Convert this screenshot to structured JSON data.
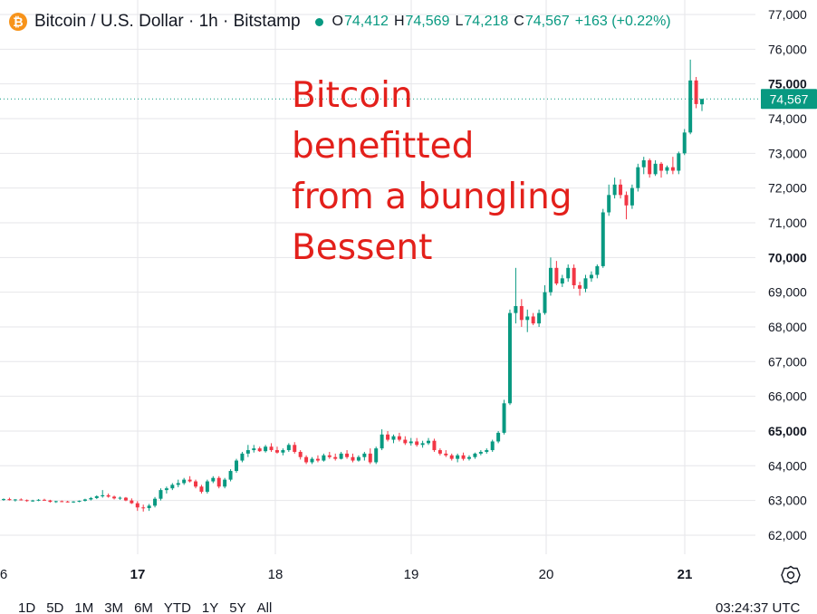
{
  "header": {
    "coin_symbol": "₿",
    "title": "Bitcoin / U.S. Dollar · 1h · Bitstamp",
    "ohlc": [
      {
        "key": "O",
        "value": "74,412"
      },
      {
        "key": "H",
        "value": "74,569"
      },
      {
        "key": "L",
        "value": "74,218"
      },
      {
        "key": "C",
        "value": "74,567"
      }
    ],
    "change": "+163 (+0.22%)"
  },
  "annotation": {
    "lines": [
      "Bitcoin benefitted",
      "from a bungling",
      "Bessent"
    ]
  },
  "bottom_bar": {
    "ranges": [
      "1D",
      "5D",
      "1M",
      "3M",
      "6M",
      "YTD",
      "1Y",
      "5Y",
      "All"
    ],
    "clock": "03:24:37 UTC"
  },
  "colors": {
    "up": "#089981",
    "down": "#f23645",
    "annotation": "#e3201b",
    "grid": "#e6e6ea"
  },
  "icons": {
    "settings": "gear-icon",
    "coin": "bitcoin-icon",
    "status": "market-open-dot-icon"
  },
  "chart_data": {
    "type": "candlestick",
    "interval": "1h",
    "exchange": "Bitstamp",
    "x_tick_labels": [
      "6",
      "17",
      "18",
      "19",
      "20",
      "21"
    ],
    "y_ticks": [
      62000,
      63000,
      64000,
      65000,
      66000,
      67000,
      68000,
      69000,
      70000,
      71000,
      72000,
      73000,
      74000,
      75000,
      76000,
      77000
    ],
    "ylim": [
      61300,
      77200
    ],
    "last_price": 74567,
    "last_price_label": "74,567",
    "grid": true,
    "candles": [
      [
        63020,
        63060,
        62990,
        63040
      ],
      [
        63040,
        63080,
        63000,
        63010
      ],
      [
        63010,
        63040,
        62970,
        63030
      ],
      [
        63030,
        63060,
        63000,
        63010
      ],
      [
        63010,
        63030,
        62960,
        62990
      ],
      [
        62990,
        63020,
        62960,
        63000
      ],
      [
        63000,
        63040,
        62980,
        63020
      ],
      [
        63020,
        63050,
        62990,
        63000
      ],
      [
        63000,
        63020,
        62940,
        62960
      ],
      [
        62960,
        62990,
        62930,
        62980
      ],
      [
        62980,
        63000,
        62950,
        62970
      ],
      [
        62970,
        62990,
        62940,
        62960
      ],
      [
        62960,
        62980,
        62930,
        62970
      ],
      [
        62970,
        63000,
        62950,
        62990
      ],
      [
        62990,
        63050,
        62970,
        63030
      ],
      [
        63030,
        63100,
        63000,
        63070
      ],
      [
        63070,
        63150,
        63040,
        63120
      ],
      [
        63120,
        63300,
        63080,
        63150
      ],
      [
        63150,
        63200,
        63080,
        63110
      ],
      [
        63110,
        63140,
        63030,
        63060
      ],
      [
        63060,
        63110,
        63020,
        63080
      ],
      [
        63080,
        63100,
        62980,
        63000
      ],
      [
        63000,
        63060,
        62900,
        62920
      ],
      [
        62920,
        62980,
        62700,
        62800
      ],
      [
        62800,
        62880,
        62680,
        62780
      ],
      [
        62780,
        62900,
        62700,
        62850
      ],
      [
        62850,
        63100,
        62800,
        63050
      ],
      [
        63050,
        63350,
        63000,
        63300
      ],
      [
        63300,
        63400,
        63200,
        63350
      ],
      [
        63350,
        63500,
        63300,
        63450
      ],
      [
        63450,
        63600,
        63380,
        63500
      ],
      [
        63500,
        63650,
        63450,
        63600
      ],
      [
        63600,
        63700,
        63520,
        63550
      ],
      [
        63550,
        63600,
        63350,
        63400
      ],
      [
        63400,
        63450,
        63200,
        63250
      ],
      [
        63250,
        63600,
        63200,
        63550
      ],
      [
        63550,
        63700,
        63500,
        63650
      ],
      [
        63650,
        63700,
        63350,
        63400
      ],
      [
        63400,
        63650,
        63350,
        63600
      ],
      [
        63600,
        63900,
        63550,
        63850
      ],
      [
        63850,
        64200,
        63800,
        64150
      ],
      [
        64150,
        64400,
        64100,
        64350
      ],
      [
        64350,
        64600,
        64250,
        64450
      ],
      [
        64450,
        64600,
        64380,
        64500
      ],
      [
        64500,
        64550,
        64400,
        64420
      ],
      [
        64420,
        64600,
        64380,
        64550
      ],
      [
        64550,
        64650,
        64400,
        64450
      ],
      [
        64450,
        64550,
        64350,
        64380
      ],
      [
        64380,
        64500,
        64300,
        64450
      ],
      [
        64450,
        64650,
        64400,
        64600
      ],
      [
        64600,
        64680,
        64350,
        64400
      ],
      [
        64400,
        64450,
        64180,
        64250
      ],
      [
        64250,
        64300,
        64050,
        64100
      ],
      [
        64100,
        64250,
        64050,
        64200
      ],
      [
        64200,
        64300,
        64100,
        64150
      ],
      [
        64150,
        64350,
        64120,
        64300
      ],
      [
        64300,
        64400,
        64200,
        64250
      ],
      [
        64250,
        64350,
        64150,
        64200
      ],
      [
        64200,
        64400,
        64180,
        64350
      ],
      [
        64350,
        64450,
        64200,
        64250
      ],
      [
        64250,
        64350,
        64100,
        64150
      ],
      [
        64150,
        64300,
        64120,
        64250
      ],
      [
        64250,
        64400,
        64150,
        64350
      ],
      [
        64350,
        64500,
        64050,
        64100
      ],
      [
        64100,
        64550,
        64050,
        64500
      ],
      [
        64500,
        65050,
        64450,
        64900
      ],
      [
        64900,
        65000,
        64700,
        64750
      ],
      [
        64750,
        64900,
        64650,
        64850
      ],
      [
        64850,
        64950,
        64700,
        64750
      ],
      [
        64750,
        64850,
        64600,
        64650
      ],
      [
        64650,
        64800,
        64580,
        64700
      ],
      [
        64700,
        64800,
        64550,
        64600
      ],
      [
        64600,
        64720,
        64520,
        64650
      ],
      [
        64650,
        64800,
        64600,
        64720
      ],
      [
        64720,
        64780,
        64400,
        64450
      ],
      [
        64450,
        64500,
        64300,
        64350
      ],
      [
        64350,
        64450,
        64250,
        64300
      ],
      [
        64300,
        64350,
        64150,
        64200
      ],
      [
        64200,
        64350,
        64100,
        64300
      ],
      [
        64300,
        64380,
        64150,
        64200
      ],
      [
        64200,
        64300,
        64150,
        64250
      ],
      [
        64250,
        64380,
        64200,
        64350
      ],
      [
        64350,
        64450,
        64300,
        64400
      ],
      [
        64400,
        64500,
        64350,
        64450
      ],
      [
        64450,
        64750,
        64400,
        64700
      ],
      [
        64700,
        65000,
        64650,
        64950
      ],
      [
        64950,
        65900,
        64900,
        65800
      ],
      [
        65800,
        68500,
        65750,
        68400
      ],
      [
        68400,
        69700,
        68100,
        68600
      ],
      [
        68600,
        68800,
        68000,
        68200
      ],
      [
        68200,
        68500,
        67850,
        68300
      ],
      [
        68300,
        68400,
        68050,
        68100
      ],
      [
        68100,
        68500,
        68000,
        68400
      ],
      [
        68400,
        69200,
        68350,
        69000
      ],
      [
        69000,
        70000,
        68900,
        69700
      ],
      [
        69700,
        69900,
        69200,
        69250
      ],
      [
        69250,
        69500,
        69150,
        69400
      ],
      [
        69400,
        69800,
        69300,
        69700
      ],
      [
        69700,
        69800,
        69100,
        69200
      ],
      [
        69200,
        69300,
        68900,
        69100
      ],
      [
        69100,
        69500,
        69000,
        69400
      ],
      [
        69400,
        69600,
        69300,
        69500
      ],
      [
        69500,
        69800,
        69400,
        69750
      ],
      [
        69750,
        71400,
        69700,
        71300
      ],
      [
        71300,
        72100,
        71200,
        71800
      ],
      [
        71800,
        72300,
        71700,
        72100
      ],
      [
        72100,
        72250,
        71700,
        71800
      ],
      [
        71800,
        71900,
        71100,
        71500
      ],
      [
        71500,
        72100,
        71400,
        72000
      ],
      [
        72000,
        72700,
        71900,
        72600
      ],
      [
        72600,
        72900,
        72400,
        72800
      ],
      [
        72800,
        72850,
        72300,
        72400
      ],
      [
        72400,
        72800,
        72350,
        72700
      ],
      [
        72700,
        72750,
        72300,
        72500
      ],
      [
        72500,
        72650,
        72400,
        72600
      ],
      [
        72600,
        72900,
        72400,
        72500
      ],
      [
        72500,
        73050,
        72400,
        73000
      ],
      [
        73000,
        73700,
        72950,
        73600
      ],
      [
        73600,
        75700,
        73550,
        75100
      ],
      [
        75100,
        75200,
        74300,
        74420
      ],
      [
        74412,
        74569,
        74218,
        74567
      ]
    ]
  }
}
